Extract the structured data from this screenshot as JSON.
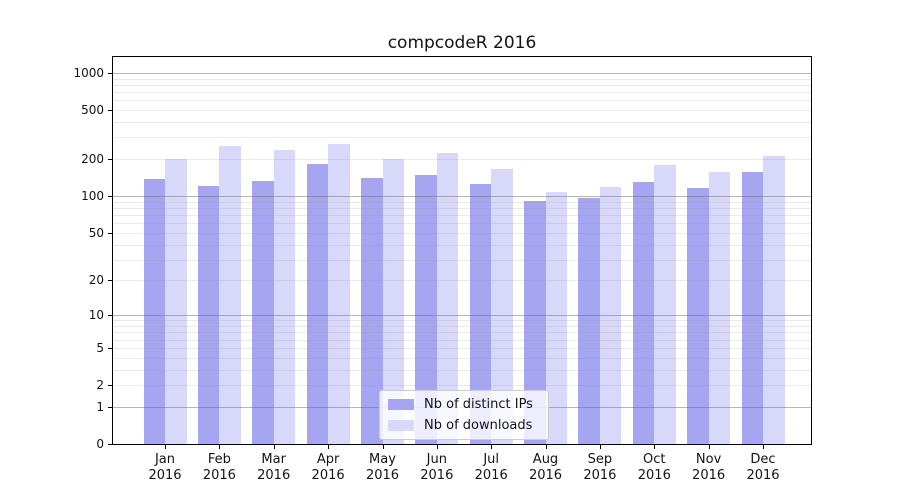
{
  "chart_data": {
    "type": "bar",
    "title": "compcodeR 2016",
    "categories": [
      "Jan",
      "Feb",
      "Mar",
      "Apr",
      "May",
      "Jun",
      "Jul",
      "Aug",
      "Sep",
      "Oct",
      "Nov",
      "Dec"
    ],
    "x_year_suffix": "2016",
    "series": [
      {
        "name": "Nb of distinct IPs",
        "color": "#a5a5f2",
        "values": [
          137,
          122,
          132,
          183,
          140,
          149,
          126,
          92,
          96,
          131,
          117,
          157
        ]
      },
      {
        "name": "Nb of downloads",
        "color": "#d8d8fa",
        "values": [
          200,
          254,
          239,
          265,
          200,
          223,
          166,
          109,
          118,
          180,
          157,
          211
        ]
      }
    ],
    "y_scale": "log1p",
    "y_ticks": [
      0,
      1,
      2,
      5,
      10,
      20,
      50,
      100,
      200,
      500,
      1000
    ],
    "ylim": [
      0,
      1343
    ],
    "grid": {
      "major_on": true,
      "minor_on": true,
      "major_color": "#b3b3b3",
      "minor_color": "#e4e4e4"
    },
    "legend": {
      "position": "bottom-center"
    }
  }
}
